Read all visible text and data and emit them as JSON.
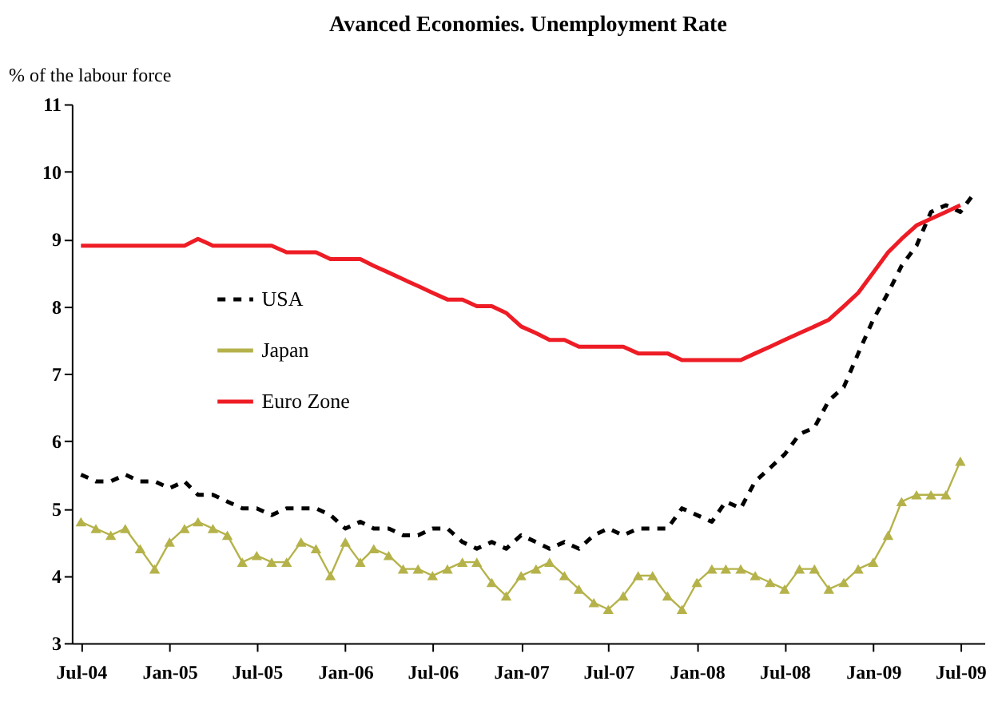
{
  "chart_data": {
    "type": "line",
    "title": "Avanced Economies. Unemployment Rate",
    "ylabel": "% of the labour force",
    "x": [
      "2004-07",
      "2004-08",
      "2004-09",
      "2004-10",
      "2004-11",
      "2004-12",
      "2005-01",
      "2005-02",
      "2005-03",
      "2005-04",
      "2005-05",
      "2005-06",
      "2005-07",
      "2005-08",
      "2005-09",
      "2005-10",
      "2005-11",
      "2005-12",
      "2006-01",
      "2006-02",
      "2006-03",
      "2006-04",
      "2006-05",
      "2006-06",
      "2006-07",
      "2006-08",
      "2006-09",
      "2006-10",
      "2006-11",
      "2006-12",
      "2007-01",
      "2007-02",
      "2007-03",
      "2007-04",
      "2007-05",
      "2007-06",
      "2007-07",
      "2007-08",
      "2007-09",
      "2007-10",
      "2007-11",
      "2007-12",
      "2008-01",
      "2008-02",
      "2008-03",
      "2008-04",
      "2008-05",
      "2008-06",
      "2008-07",
      "2008-08",
      "2008-09",
      "2008-10",
      "2008-11",
      "2008-12",
      "2009-01",
      "2009-02",
      "2009-03",
      "2009-04",
      "2009-05",
      "2009-06",
      "2009-07"
    ],
    "series": [
      {
        "name": "USA",
        "color": "#000000",
        "line_style": "dashed",
        "marker": "none",
        "x": [
          "2004-07",
          "2004-08",
          "2004-09",
          "2004-10",
          "2004-11",
          "2004-12",
          "2005-01",
          "2005-02",
          "2005-03",
          "2005-04",
          "2005-05",
          "2005-06",
          "2005-07",
          "2005-08",
          "2005-09",
          "2005-10",
          "2005-11",
          "2005-12",
          "2006-01",
          "2006-02",
          "2006-03",
          "2006-04",
          "2006-05",
          "2006-06",
          "2006-07",
          "2006-08",
          "2006-09",
          "2006-10",
          "2006-11",
          "2006-12",
          "2007-01",
          "2007-02",
          "2007-03",
          "2007-04",
          "2007-05",
          "2007-06",
          "2007-07",
          "2007-08",
          "2007-09",
          "2007-10",
          "2007-11",
          "2007-12",
          "2008-01",
          "2008-02",
          "2008-03",
          "2008-04",
          "2008-05",
          "2008-06",
          "2008-07",
          "2008-08",
          "2008-09",
          "2008-10",
          "2008-11",
          "2008-12",
          "2009-01",
          "2009-02",
          "2009-03",
          "2009-04",
          "2009-05",
          "2009-06",
          "2009-07",
          "2009-08"
        ],
        "values": [
          5.5,
          5.4,
          5.4,
          5.5,
          5.4,
          5.4,
          5.3,
          5.4,
          5.2,
          5.2,
          5.1,
          5.0,
          5.0,
          4.9,
          5.0,
          5.0,
          5.0,
          4.9,
          4.7,
          4.8,
          4.7,
          4.7,
          4.6,
          4.6,
          4.7,
          4.7,
          4.5,
          4.4,
          4.5,
          4.4,
          4.6,
          4.5,
          4.4,
          4.5,
          4.4,
          4.6,
          4.7,
          4.6,
          4.7,
          4.7,
          4.7,
          5.0,
          4.9,
          4.8,
          5.1,
          5.0,
          5.4,
          5.6,
          5.8,
          6.1,
          6.2,
          6.6,
          6.8,
          7.3,
          7.8,
          8.2,
          8.6,
          8.9,
          9.4,
          9.5,
          9.4,
          9.7
        ]
      },
      {
        "name": "Japan",
        "color": "#b5b24a",
        "line_style": "solid",
        "marker": "triangle",
        "values": [
          4.8,
          4.7,
          4.6,
          4.7,
          4.4,
          4.1,
          4.5,
          4.7,
          4.8,
          4.7,
          4.6,
          4.2,
          4.3,
          4.2,
          4.2,
          4.5,
          4.4,
          4.0,
          4.5,
          4.2,
          4.4,
          4.3,
          4.1,
          4.1,
          4.0,
          4.1,
          4.2,
          4.2,
          3.9,
          3.7,
          4.0,
          4.1,
          4.2,
          4.0,
          3.8,
          3.6,
          3.5,
          3.7,
          4.0,
          4.0,
          3.7,
          3.5,
          3.9,
          4.1,
          4.1,
          4.1,
          4.0,
          3.9,
          3.8,
          4.1,
          4.1,
          3.8,
          3.9,
          4.1,
          4.2,
          4.6,
          5.1,
          5.2,
          5.2,
          5.2,
          5.7
        ]
      },
      {
        "name": "Euro Zone",
        "color": "#ee1c25",
        "line_style": "solid",
        "marker": "none",
        "values": [
          8.9,
          8.9,
          8.9,
          8.9,
          8.9,
          8.9,
          8.9,
          8.9,
          9.0,
          8.9,
          8.9,
          8.9,
          8.9,
          8.9,
          8.8,
          8.8,
          8.8,
          8.7,
          8.7,
          8.7,
          8.6,
          8.5,
          8.4,
          8.3,
          8.2,
          8.1,
          8.1,
          8.0,
          8.0,
          7.9,
          7.7,
          7.6,
          7.5,
          7.5,
          7.4,
          7.4,
          7.4,
          7.4,
          7.3,
          7.3,
          7.3,
          7.2,
          7.2,
          7.2,
          7.2,
          7.2,
          7.3,
          7.4,
          7.5,
          7.6,
          7.7,
          7.8,
          8.0,
          8.2,
          8.5,
          8.8,
          9.0,
          9.2,
          9.3,
          9.4,
          9.5
        ]
      }
    ],
    "xlim": [
      "2004-06-12",
      "2009-08-20"
    ],
    "xticks": [
      {
        "value": "2004-07",
        "label": "Jul-04"
      },
      {
        "value": "2005-01",
        "label": "Jan-05"
      },
      {
        "value": "2005-07",
        "label": "Jul-05"
      },
      {
        "value": "2006-01",
        "label": "Jan-06"
      },
      {
        "value": "2006-07",
        "label": "Jul-06"
      },
      {
        "value": "2007-01",
        "label": "Jan-07"
      },
      {
        "value": "2007-07",
        "label": "Jul-07"
      },
      {
        "value": "2008-01",
        "label": "Jan-08"
      },
      {
        "value": "2008-07",
        "label": "Jul-08"
      },
      {
        "value": "2009-01",
        "label": "Jan-09"
      },
      {
        "value": "2009-07",
        "label": "Jul-09"
      }
    ],
    "ylim": [
      3,
      11
    ],
    "yticks": [
      3,
      4,
      5,
      6,
      7,
      8,
      9,
      10,
      11
    ],
    "grid": false,
    "legend": "left"
  }
}
